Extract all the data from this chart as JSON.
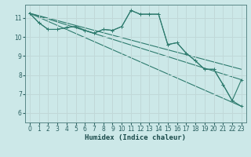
{
  "xlabel": "Humidex (Indice chaleur)",
  "bg_color": "#cce8e8",
  "grid_color": "#c0d8d8",
  "line_color": "#2e7b6e",
  "xlim": [
    -0.5,
    23.5
  ],
  "ylim": [
    5.5,
    11.7
  ],
  "yticks": [
    6,
    7,
    8,
    9,
    10,
    11
  ],
  "xticks": [
    0,
    1,
    2,
    3,
    4,
    5,
    6,
    7,
    8,
    9,
    10,
    11,
    12,
    13,
    14,
    15,
    16,
    17,
    18,
    19,
    20,
    21,
    22,
    23
  ],
  "series_wiggly": [
    {
      "x": [
        0,
        1,
        2,
        3,
        4,
        5,
        6,
        7,
        8,
        9,
        10,
        11,
        12,
        13,
        14,
        15,
        16,
        17,
        18,
        19,
        20,
        21,
        22,
        23
      ],
      "y": [
        11.25,
        10.75,
        10.4,
        10.4,
        10.5,
        10.55,
        10.35,
        10.2,
        10.4,
        10.35,
        10.55,
        11.4,
        11.2,
        11.2,
        11.2,
        9.6,
        9.7,
        9.15,
        8.75,
        8.3,
        8.3,
        7.5,
        6.65,
        6.35
      ]
    },
    {
      "x": [
        0,
        1,
        2,
        3,
        4,
        5,
        6,
        7,
        8,
        9,
        10,
        11,
        12,
        13,
        14,
        15,
        16,
        17,
        18,
        19,
        20,
        21,
        22,
        23
      ],
      "y": [
        11.25,
        10.75,
        10.4,
        10.4,
        10.5,
        10.55,
        10.35,
        10.2,
        10.4,
        10.35,
        10.55,
        11.4,
        11.2,
        11.2,
        11.2,
        9.6,
        9.7,
        9.15,
        8.75,
        8.3,
        8.3,
        7.5,
        6.65,
        7.75
      ]
    }
  ],
  "series_straight": [
    {
      "x": [
        0,
        23
      ],
      "y": [
        11.25,
        6.35
      ]
    },
    {
      "x": [
        0,
        23
      ],
      "y": [
        11.25,
        7.75
      ]
    },
    {
      "x": [
        0,
        23
      ],
      "y": [
        11.25,
        8.3
      ]
    }
  ]
}
